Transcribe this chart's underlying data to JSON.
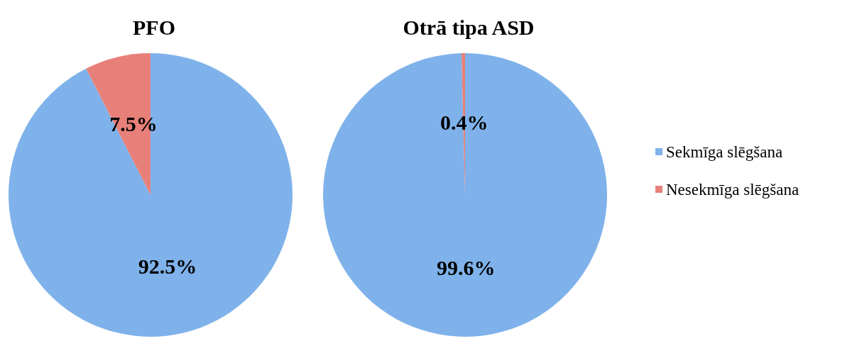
{
  "chart_data": [
    {
      "type": "pie",
      "title": "PFO",
      "categories": [
        "Sekmīga slēgšana",
        "Nesekmīga slēgšana"
      ],
      "values": [
        92.5,
        7.5
      ],
      "colors": [
        "#7fb2ea",
        "#e8807a"
      ],
      "value_labels": [
        "92.5%",
        "7.5%"
      ],
      "legend": "right"
    },
    {
      "type": "pie",
      "title": "Otrā tipa ASD",
      "categories": [
        null,
        null
      ],
      "values": [
        99.6,
        0.4
      ],
      "colors": [
        "#7fb2ea",
        "#e8807a"
      ],
      "value_labels": [
        "99.6%",
        "0.4%"
      ]
    }
  ]
}
